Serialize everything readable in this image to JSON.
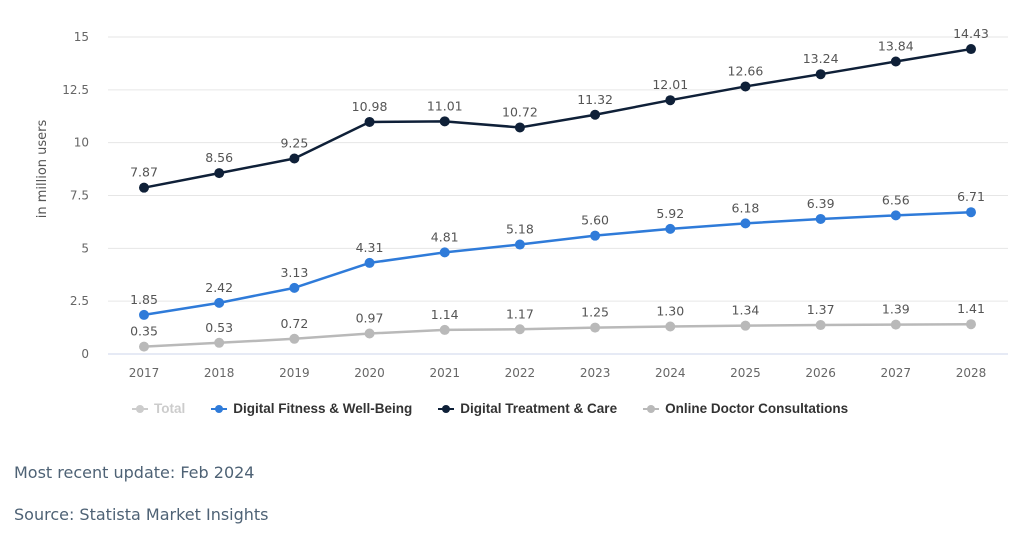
{
  "chart_data": {
    "type": "line",
    "title": "",
    "xlabel": "",
    "ylabel": "in million users",
    "x": [
      "2017",
      "2018",
      "2019",
      "2020",
      "2021",
      "2022",
      "2023",
      "2024",
      "2025",
      "2026",
      "2027",
      "2028"
    ],
    "ylim": [
      0,
      15
    ],
    "yticks": [
      0,
      2.5,
      5,
      7.5,
      10,
      12.5,
      15
    ],
    "ytick_labels": [
      "0",
      "2.5",
      "5",
      "7.5",
      "10",
      "12.5",
      "15"
    ],
    "grid": true,
    "legend_position": "bottom-left",
    "series": [
      {
        "name": "Total",
        "visible": false,
        "color": "#cccccc",
        "values": []
      },
      {
        "name": "Digital Fitness & Well-Being",
        "visible": true,
        "color": "#2f7bd9",
        "values": [
          1.85,
          2.42,
          3.13,
          4.31,
          4.81,
          5.18,
          5.6,
          5.92,
          6.18,
          6.39,
          6.56,
          6.71
        ],
        "labels": [
          "1.85",
          "2.42",
          "3.13",
          "4.31",
          "4.81",
          "5.18",
          "5.60",
          "5.92",
          "6.18",
          "6.39",
          "6.56",
          "6.71"
        ]
      },
      {
        "name": "Digital Treatment & Care",
        "visible": true,
        "color": "#0f2038",
        "values": [
          7.87,
          8.56,
          9.25,
          10.98,
          11.01,
          10.72,
          11.32,
          12.01,
          12.66,
          13.24,
          13.84,
          14.43
        ],
        "labels": [
          "7.87",
          "8.56",
          "9.25",
          "10.98",
          "11.01",
          "10.72",
          "11.32",
          "12.01",
          "12.66",
          "13.24",
          "13.84",
          "14.43"
        ]
      },
      {
        "name": "Online Doctor Consultations",
        "visible": true,
        "color": "#b9b9b9",
        "values": [
          0.35,
          0.53,
          0.72,
          0.97,
          1.14,
          1.17,
          1.25,
          1.3,
          1.34,
          1.37,
          1.39,
          1.41
        ],
        "labels": [
          "0.35",
          "0.53",
          "0.72",
          "0.97",
          "1.14",
          "1.17",
          "1.25",
          "1.30",
          "1.34",
          "1.37",
          "1.39",
          "1.41"
        ]
      }
    ]
  },
  "colors": {
    "gridline": "#e6e6e6",
    "axis_line": "#ccd6eb",
    "footer_text": "#4e6275",
    "legend_hidden": "#cccccc"
  },
  "footer": {
    "update": "Most recent update: Feb 2024",
    "source": "Source: Statista Market Insights"
  }
}
